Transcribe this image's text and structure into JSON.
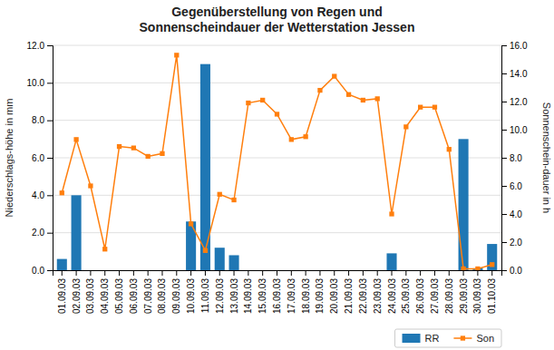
{
  "chart_data": {
    "type": "bar",
    "title": "Gegenüberstellung von Regen und\nSonnenscheindauer der Wetterstation Jessen",
    "y_label": "Niederschlags-höhe in mm",
    "y2_label": "Sonnenschein-dauer in h",
    "categories": [
      "01.09.03",
      "02.09.03",
      "03.09.03",
      "04.09.03",
      "05.09.03",
      "06.09.03",
      "07.09.03",
      "08.09.03",
      "09.09.03",
      "10.09.03",
      "11.09.03",
      "12.09.03",
      "13.09.03",
      "14.09.03",
      "15.09.03",
      "16.09.03",
      "17.09.03",
      "18.09.03",
      "19.09.03",
      "20.09.03",
      "21.09.03",
      "22.09.03",
      "23.09.03",
      "24.09.03",
      "25.09.03",
      "26.09.03",
      "27.09.03",
      "28.09.03",
      "29.09.03",
      "30.09.03",
      "01.10.03"
    ],
    "series": [
      {
        "name": "RR",
        "type": "bar",
        "values": [
          0.6,
          4.0,
          0.0,
          0.0,
          0.0,
          0.0,
          0.0,
          0.0,
          0.0,
          2.6,
          11.0,
          1.2,
          0.8,
          0.0,
          0.0,
          0.0,
          0.0,
          0.0,
          0.0,
          0.0,
          0.0,
          0.0,
          0.0,
          0.9,
          0.0,
          0.0,
          0.0,
          0.0,
          7.0,
          0.1,
          1.4
        ]
      },
      {
        "name": "Son",
        "type": "line",
        "axis": "y2",
        "marker": "square",
        "values": [
          5.5,
          9.3,
          6.0,
          1.5,
          8.8,
          8.7,
          8.1,
          8.3,
          15.3,
          3.3,
          1.4,
          5.4,
          5.0,
          11.9,
          12.1,
          11.1,
          9.3,
          9.5,
          12.8,
          13.8,
          12.5,
          12.1,
          12.2,
          4.0,
          10.2,
          11.6,
          11.6,
          8.6,
          0.1,
          0.1,
          0.4
        ]
      }
    ],
    "ylim": [
      0.0,
      12.0
    ],
    "yticks": [
      {
        "value": 0,
        "label": "0.0"
      },
      {
        "value": 2,
        "label": "2.0"
      },
      {
        "value": 4,
        "label": "4.0"
      },
      {
        "value": 6,
        "label": "6.0"
      },
      {
        "value": 8,
        "label": "8.0"
      },
      {
        "value": 10,
        "label": "10.0"
      },
      {
        "value": 12,
        "label": "12.0"
      }
    ],
    "y2lim": [
      0.0,
      16.0
    ],
    "y2ticks": [
      {
        "value": 0,
        "label": "0.0"
      },
      {
        "value": 2,
        "label": "2.0"
      },
      {
        "value": 4,
        "label": "4.0"
      },
      {
        "value": 6,
        "label": "6.0"
      },
      {
        "value": 8,
        "label": "8.0"
      },
      {
        "value": 10,
        "label": "10.0"
      },
      {
        "value": 12,
        "label": "12.0"
      },
      {
        "value": 14,
        "label": "14.0"
      },
      {
        "value": 16,
        "label": "16.0"
      }
    ],
    "grid": true,
    "legend": "lower right"
  }
}
